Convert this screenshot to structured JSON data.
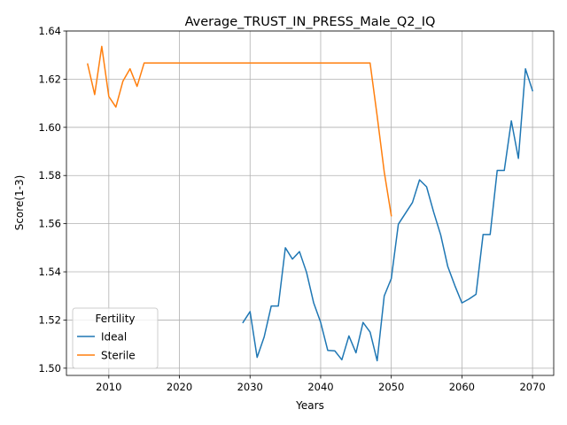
{
  "chart_data": {
    "type": "line",
    "title": "Average_TRUST_IN_PRESS_Male_Q2_IQ",
    "xlabel": "Years",
    "ylabel": "Score(1-3)",
    "xlim": [
      2004,
      2073
    ],
    "ylim": [
      1.497,
      1.64
    ],
    "xticks": [
      2010,
      2020,
      2030,
      2040,
      2050,
      2060,
      2070
    ],
    "yticks": [
      1.5,
      1.52,
      1.54,
      1.56,
      1.58,
      1.6,
      1.62,
      1.64
    ],
    "ytick_labels": [
      "1.50",
      "1.52",
      "1.54",
      "1.56",
      "1.58",
      "1.60",
      "1.62",
      "1.64"
    ],
    "grid": true,
    "legend": {
      "title": "Fertility",
      "position": "lower-left"
    },
    "series": [
      {
        "name": "Ideal",
        "color": "#1f77b4",
        "points": [
          [
            2029,
            1.519
          ],
          [
            2030,
            1.5235
          ],
          [
            2031,
            1.5045
          ],
          [
            2032,
            1.513
          ],
          [
            2033,
            1.5258
          ],
          [
            2034,
            1.5258
          ],
          [
            2035,
            1.55
          ],
          [
            2036,
            1.5453
          ],
          [
            2037,
            1.5484
          ],
          [
            2038,
            1.5398
          ],
          [
            2039,
            1.5272
          ],
          [
            2040,
            1.519
          ],
          [
            2041,
            1.5074
          ],
          [
            2042,
            1.5072
          ],
          [
            2043,
            1.5035
          ],
          [
            2044,
            1.5134
          ],
          [
            2045,
            1.5064
          ],
          [
            2046,
            1.519
          ],
          [
            2047,
            1.515
          ],
          [
            2048,
            1.5031
          ],
          [
            2049,
            1.53
          ],
          [
            2050,
            1.5372
          ],
          [
            2051,
            1.5598
          ],
          [
            2052,
            1.5643
          ],
          [
            2053,
            1.5688
          ],
          [
            2054,
            1.5782
          ],
          [
            2055,
            1.5753
          ],
          [
            2056,
            1.5648
          ],
          [
            2057,
            1.5553
          ],
          [
            2058,
            1.5422
          ],
          [
            2059,
            1.5343
          ],
          [
            2060,
            1.5271
          ],
          [
            2061,
            1.5287
          ],
          [
            2062,
            1.5307
          ],
          [
            2063,
            1.5555
          ],
          [
            2064,
            1.5555
          ],
          [
            2065,
            1.5821
          ],
          [
            2066,
            1.5821
          ],
          [
            2067,
            1.6027
          ],
          [
            2068,
            1.5871
          ],
          [
            2069,
            1.6243
          ],
          [
            2070,
            1.6152
          ]
        ]
      },
      {
        "name": "Sterile",
        "color": "#ff7f0e",
        "points": [
          [
            2007,
            1.6263
          ],
          [
            2008,
            1.6136
          ],
          [
            2009,
            1.6336
          ],
          [
            2010,
            1.6128
          ],
          [
            2011,
            1.6084
          ],
          [
            2012,
            1.6192
          ],
          [
            2013,
            1.6243
          ],
          [
            2014,
            1.617
          ],
          [
            2015,
            1.6267
          ],
          [
            2016,
            1.6267
          ],
          [
            2020,
            1.6267
          ],
          [
            2025,
            1.6267
          ],
          [
            2030,
            1.6267
          ],
          [
            2035,
            1.6267
          ],
          [
            2040,
            1.6267
          ],
          [
            2045,
            1.6267
          ],
          [
            2046,
            1.6267
          ],
          [
            2047,
            1.6267
          ],
          [
            2048,
            1.6047
          ],
          [
            2049,
            1.5815
          ],
          [
            2050,
            1.5633
          ]
        ]
      }
    ]
  }
}
